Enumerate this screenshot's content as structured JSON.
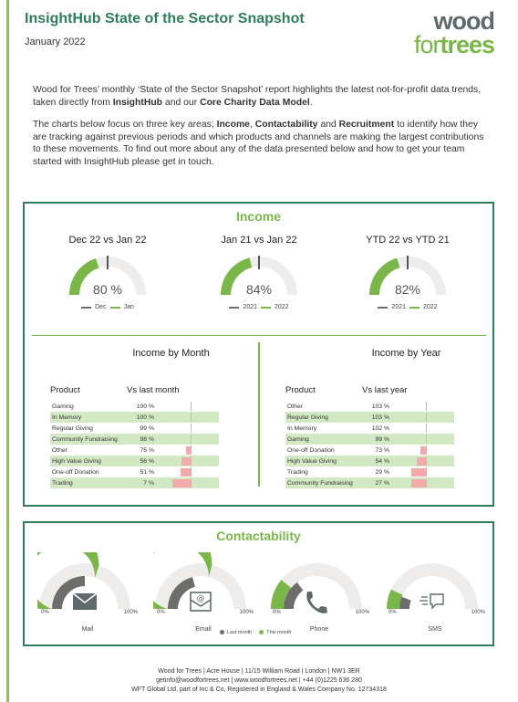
{
  "header": {
    "title": "InsightHub State of the Sector Snapshot",
    "date": "January 2022",
    "logo_line1": "wood",
    "logo_line2a": "for",
    "logo_line2b": "trees"
  },
  "intro": {
    "p1_a": "Wood for Trees’ monthly ‘State of the Sector Snapshot’ report highlights the latest not-for-profit data trends, taken directly from ",
    "p1_b": "InsightHub",
    "p1_c": " and our ",
    "p1_d": "Core Charity Data Model",
    "p1_e": ".",
    "p2_a": "The charts below focus on three key areas; ",
    "p2_b": "Income",
    "p2_c": ", ",
    "p2_d": "Contactability",
    "p2_e": " and ",
    "p2_f": "Recruitment",
    "p2_g": " to identify how they are tracking against previous periods and which products and channels are making the largest contributions to these movements. To find out more about any of the data presented below and how to get your team started with InsightHub please get in touch."
  },
  "income": {
    "title": "Income",
    "gauges": [
      {
        "title": "Dec 22 vs Jan 22",
        "value_label": "80 %",
        "value": 0.8,
        "legend_prev": "Dec",
        "legend_curr": "Jan"
      },
      {
        "title": "Jan 21 vs Jan 22",
        "value_label": "84%",
        "value": 0.84,
        "legend_prev": "2021",
        "legend_curr": "2022"
      },
      {
        "title": "YTD 22 vs YTD 21",
        "value_label": "82%",
        "value": 0.82,
        "legend_prev": "2021",
        "legend_curr": "2022"
      }
    ],
    "by_month": {
      "title": "Income by Month",
      "col_product": "Product",
      "col_value": "Vs last month",
      "rows": [
        {
          "product": "Gaming",
          "value": "100 %",
          "pct": 100
        },
        {
          "product": "In Memory",
          "value": "100 %",
          "pct": 100
        },
        {
          "product": "Regular Giving",
          "value": "99 %",
          "pct": 99
        },
        {
          "product": "Community Fundraising",
          "value": "98 %",
          "pct": 98
        },
        {
          "product": "Other",
          "value": "75 %",
          "pct": 75
        },
        {
          "product": "High Value Giving",
          "value": "56 %",
          "pct": 56
        },
        {
          "product": "One-off Donation",
          "value": "51 %",
          "pct": 51
        },
        {
          "product": "Trading",
          "value": "7 %",
          "pct": 7
        }
      ]
    },
    "by_year": {
      "title": "Income by Year",
      "col_product": "Product",
      "col_value": "Vs last year",
      "rows": [
        {
          "product": "Other",
          "value": "103 %",
          "pct": 103
        },
        {
          "product": "Regular Giving",
          "value": "103 %",
          "pct": 103
        },
        {
          "product": "In Memory",
          "value": "102 %",
          "pct": 102
        },
        {
          "product": "Gaming",
          "value": "99 %",
          "pct": 99
        },
        {
          "product": "One-off Donation",
          "value": "73 %",
          "pct": 73
        },
        {
          "product": "High Value Giving",
          "value": "54 %",
          "pct": 54
        },
        {
          "product": "Trading",
          "value": "29 %",
          "pct": 29
        },
        {
          "product": "Community Fundraising",
          "value": "27 %",
          "pct": 27
        }
      ]
    }
  },
  "contactability": {
    "title": "Contactability",
    "min_label": "0%",
    "max_label": "100%",
    "legend_last": "Last month",
    "legend_this": "This month",
    "channels": [
      {
        "label": "Mail",
        "icon": "mail-icon",
        "last": 0.5,
        "this": 0.6
      },
      {
        "label": "Email",
        "icon": "email-icon",
        "last": 0.42,
        "this": 0.58
      },
      {
        "label": "Phone",
        "icon": "phone-icon",
        "last": 0.3,
        "this": 0.22
      },
      {
        "label": "SMS",
        "icon": "sms-icon",
        "last": 0.12,
        "this": 0.14
      }
    ]
  },
  "footer": {
    "line1": "Wood for Trees | Acre House | 11/15 William Road | London | NW1 3ER",
    "line2": "getinfo@woodfortrees.net | www.woodfortrees.net | +44 (0)1225 636 280",
    "line3": "WFT Global Ltd, part of Inc & Co, Registered in England & Wales Company No. 12734318"
  },
  "colors": {
    "brand_dark": "#2e7d5b",
    "accent_green": "#7ab648",
    "grey_dark": "#6b6e6b",
    "track": "#eeedeb",
    "shade": "#d3e9c4",
    "neg_bar": "#f4aaaa"
  }
}
